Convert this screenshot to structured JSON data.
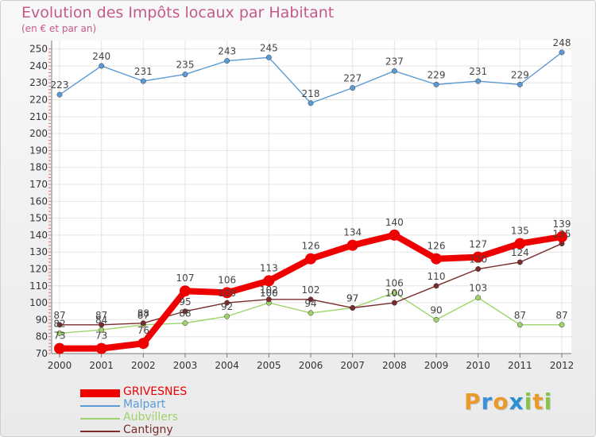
{
  "title": "Evolution des Impôts locaux par Habitant",
  "subtitle": "(en € et par an)",
  "brand": {
    "letters": [
      "P",
      "r",
      "o",
      "x",
      "i",
      "t",
      "i"
    ],
    "colors": [
      "#e89b2a",
      "#3f8ed8",
      "#e89b2a",
      "#2b8fd6",
      "#8bc34a",
      "#e89b2a",
      "#8bc34a"
    ]
  },
  "chart_data": {
    "type": "line",
    "title": "Evolution des Impôts locaux par Habitant",
    "subtitle": "(en € et par an)",
    "xlabel": "",
    "ylabel": "",
    "ylim": [
      70,
      255
    ],
    "yticks": [
      70,
      80,
      90,
      100,
      110,
      120,
      130,
      140,
      150,
      160,
      170,
      180,
      190,
      200,
      210,
      220,
      230,
      240,
      250
    ],
    "x": [
      "2000",
      "2001",
      "2002",
      "2003",
      "2004",
      "2005",
      "2006",
      "2007",
      "2008",
      "2009",
      "2010",
      "2011",
      "2012"
    ],
    "grid": true,
    "legend": "bottom-left",
    "series": [
      {
        "name": "Malpart",
        "color": "#5b9bd5",
        "values": [
          223,
          240,
          231,
          235,
          243,
          245,
          218,
          227,
          237,
          229,
          231,
          229,
          248
        ],
        "labels": [
          "223",
          "240",
          "231",
          "235",
          "243",
          "245",
          "218",
          "227",
          "237",
          "229",
          "231",
          "229",
          "248"
        ]
      },
      {
        "name": "Aubvillers",
        "color": "#9dd36a",
        "values": [
          82,
          84,
          87,
          88,
          92,
          100,
          94,
          97,
          106,
          90,
          103,
          87,
          87
        ],
        "labels": [
          "82",
          "84",
          "87",
          "88",
          "92",
          "100",
          "94",
          "97",
          "106",
          "90",
          "103",
          "87",
          "87"
        ]
      },
      {
        "name": "Cantigny",
        "color": "#7b2b2b",
        "values": [
          87,
          87,
          88,
          95,
          100,
          102,
          102,
          97,
          100,
          110,
          120,
          124,
          135
        ],
        "labels": [
          "87",
          "87",
          "88",
          "95",
          "100",
          "102",
          "102",
          "97",
          "100",
          "110",
          "120",
          "124",
          "135"
        ]
      },
      {
        "name": "GRIVESNES",
        "color": "#ee0000",
        "values": [
          73,
          73,
          76,
          107,
          106,
          113,
          126,
          134,
          140,
          126,
          127,
          135,
          139
        ],
        "labels": [
          "73",
          "73",
          "76",
          "107",
          "106",
          "113",
          "126",
          "134",
          "140",
          "126",
          "127",
          "135",
          "139"
        ]
      }
    ]
  },
  "legend_items": [
    {
      "name": "GRIVESNES",
      "color": "#ee0000"
    },
    {
      "name": "Malpart",
      "color": "#5b9bd5"
    },
    {
      "name": "Aubvillers",
      "color": "#9dd36a"
    },
    {
      "name": "Cantigny",
      "color": "#7b2b2b"
    }
  ]
}
